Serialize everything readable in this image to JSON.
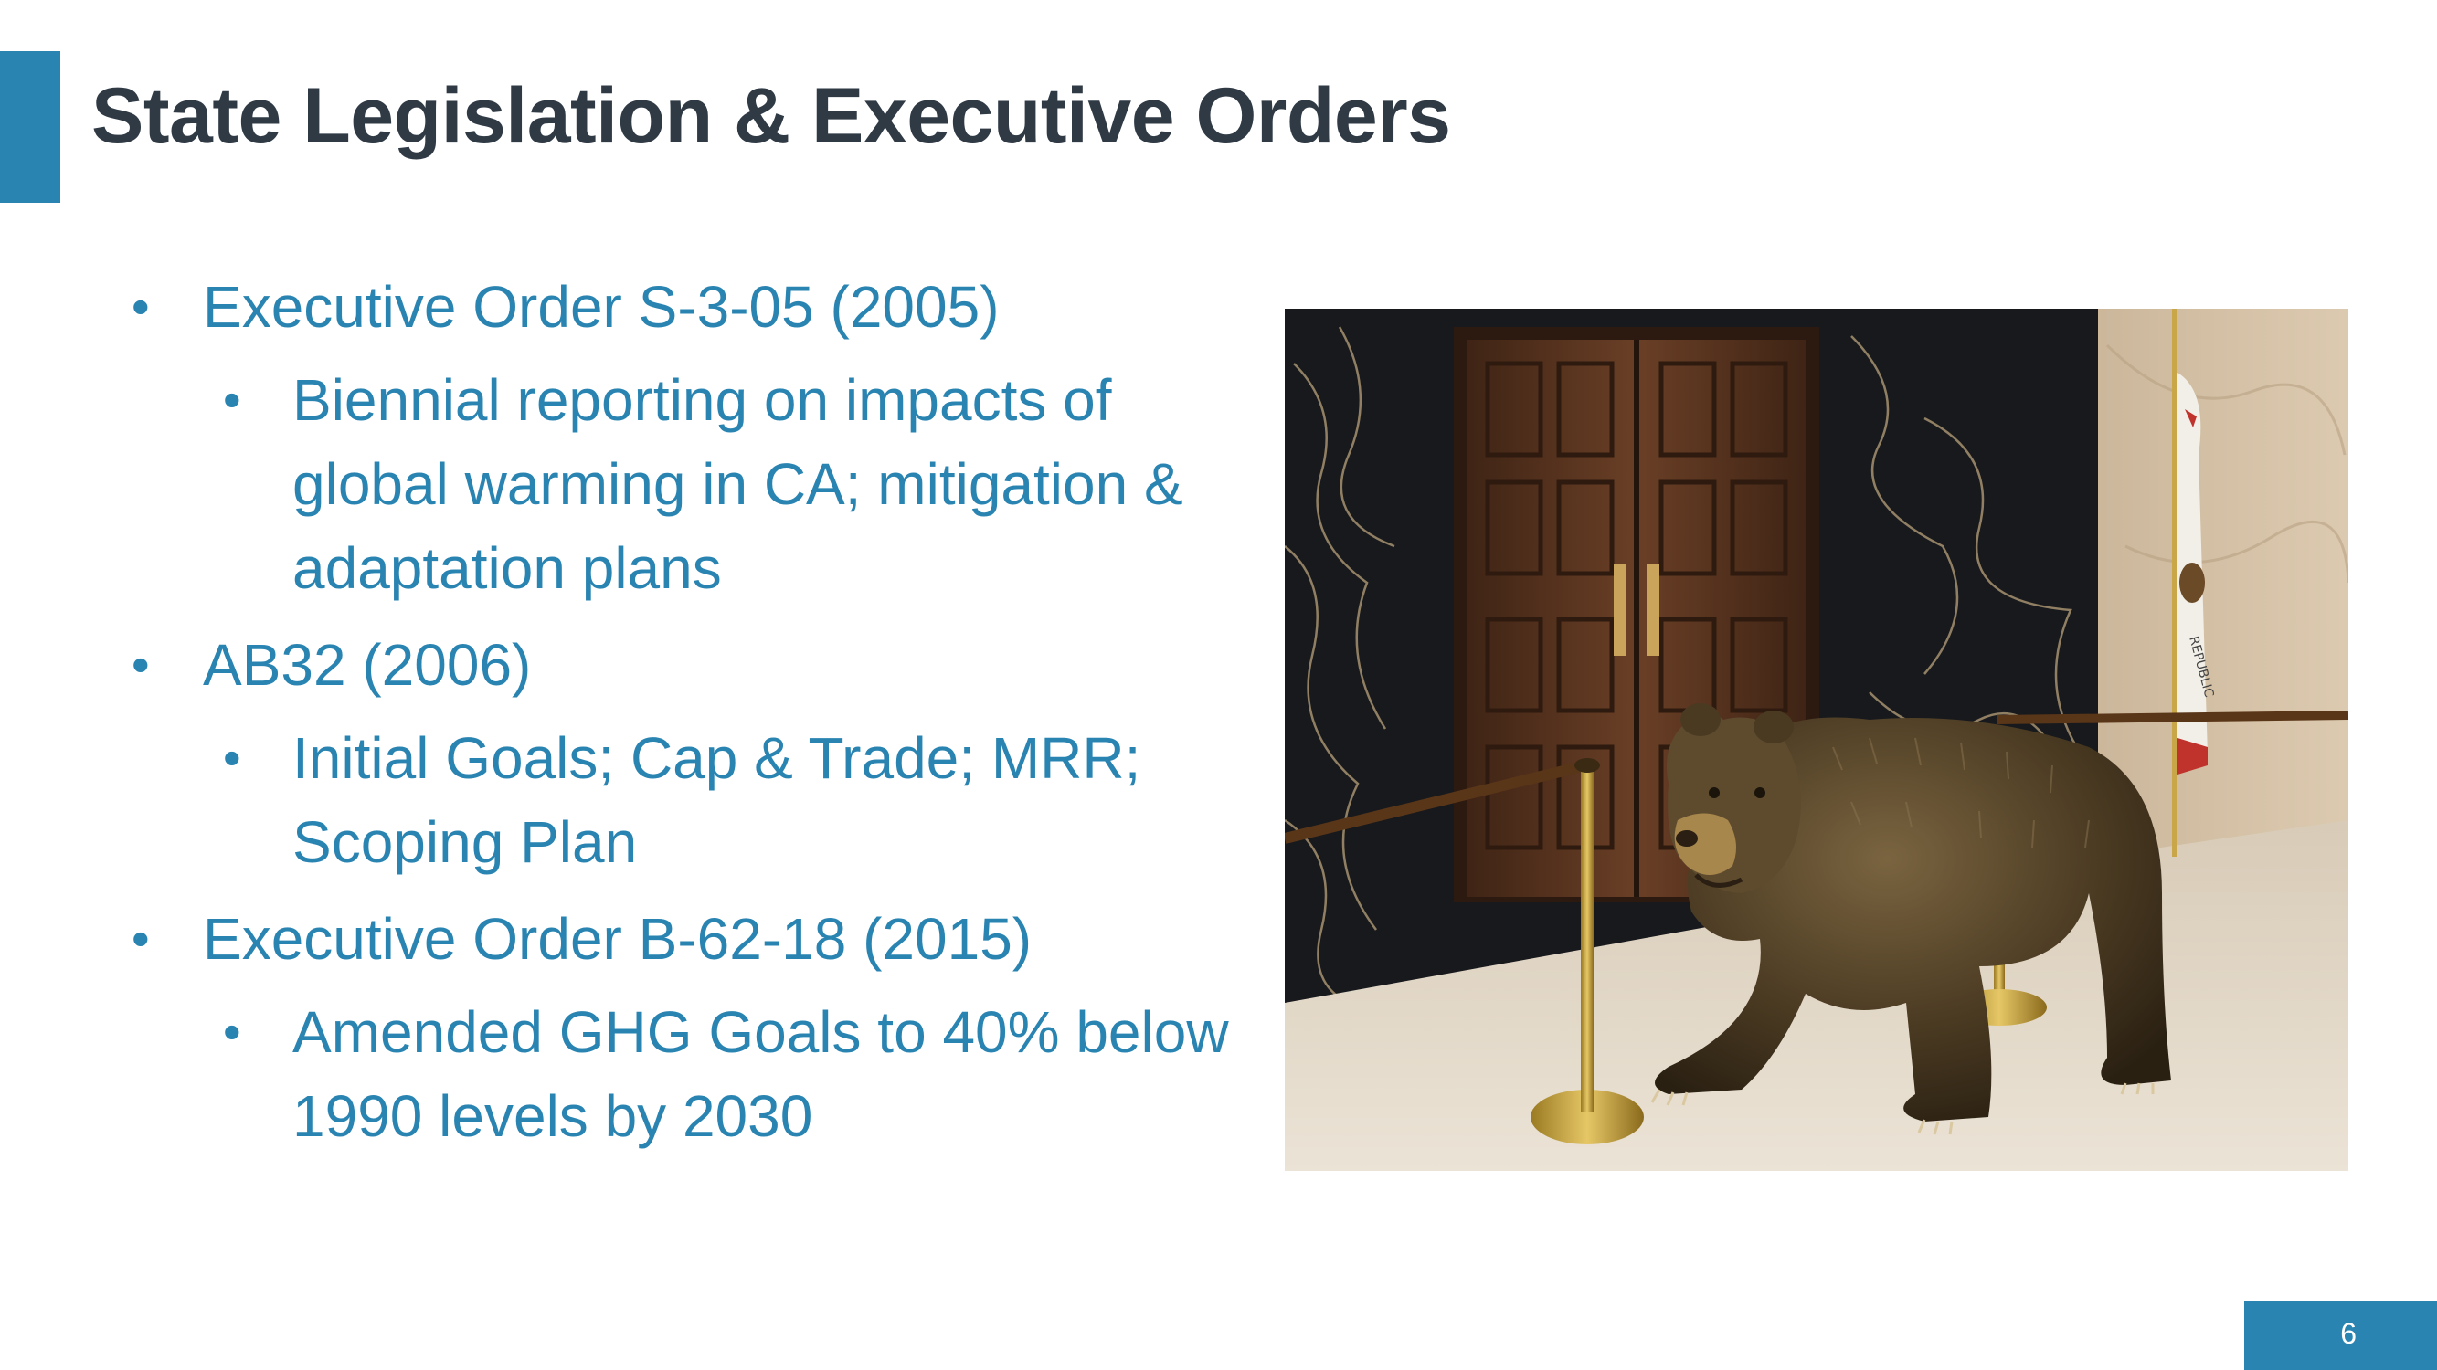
{
  "slide": {
    "title": "State Legislation & Executive Orders",
    "page_number": "6",
    "accent_color": "#2a84b2",
    "title_color": "#2f3a45"
  },
  "bullets": [
    {
      "level": 1,
      "text": "Executive Order S-3-05 (2005)"
    },
    {
      "level": 2,
      "text": "Biennial reporting on impacts of global warming in CA; mitigation & adaptation plans"
    },
    {
      "level": 1,
      "text": "AB32 (2006)"
    },
    {
      "level": 2,
      "text": "Initial Goals; Cap & Trade; MRR; Scoping Plan"
    },
    {
      "level": 1,
      "text": "Executive Order B-62-18 (2015)"
    },
    {
      "level": 2,
      "text": "Amended GHG Goals to 40% below 1990 levels by 2030"
    }
  ],
  "photo": {
    "subject": "bronze-bear-statue",
    "flag_text": "REPUBLIC"
  }
}
